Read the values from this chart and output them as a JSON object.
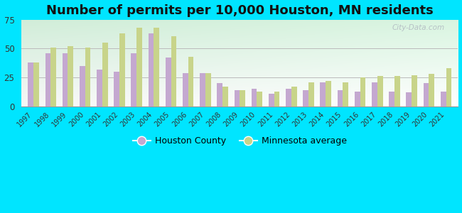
{
  "title": "Number of permits per 10,000 Houston, MN residents",
  "years": [
    1997,
    1998,
    1999,
    2000,
    2001,
    2002,
    2003,
    2004,
    2005,
    2006,
    2007,
    2008,
    2009,
    2010,
    2011,
    2012,
    2013,
    2014,
    2015,
    2016,
    2017,
    2018,
    2019,
    2020,
    2021
  ],
  "houston_county": [
    38,
    46,
    46,
    35,
    32,
    30,
    46,
    63,
    42,
    29,
    29,
    20,
    14,
    15,
    11,
    15,
    14,
    21,
    14,
    13,
    21,
    13,
    12,
    20,
    13
  ],
  "mn_average": [
    38,
    51,
    52,
    51,
    55,
    63,
    68,
    68,
    61,
    43,
    29,
    17,
    14,
    13,
    13,
    17,
    21,
    22,
    21,
    25,
    26,
    26,
    27,
    28,
    33
  ],
  "houston_color": "#c4a8d0",
  "mn_color": "#c8d48a",
  "outer_bg": "#00e5ff",
  "ylim": [
    0,
    75
  ],
  "yticks": [
    0,
    25,
    50,
    75
  ],
  "legend_houston": "Houston County",
  "legend_mn": "Minnesota average",
  "title_fontsize": 13,
  "bar_width": 0.32
}
